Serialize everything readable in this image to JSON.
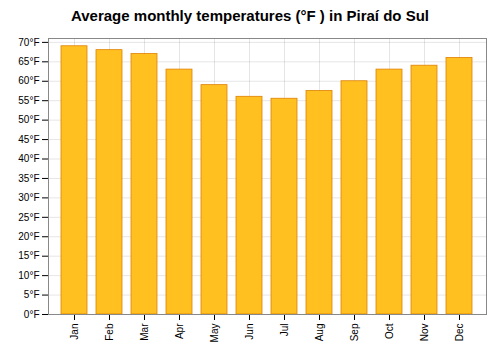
{
  "chart_data": {
    "type": "bar",
    "title": "Average monthly temperatures (°F ) in Piraí do Sul",
    "categories": [
      "Jan",
      "Feb",
      "Mar",
      "Apr",
      "May",
      "Jun",
      "Jul",
      "Aug",
      "Sep",
      "Oct",
      "Nov",
      "Dec"
    ],
    "values": [
      69,
      68,
      67,
      63,
      59,
      56,
      55.5,
      57.5,
      60,
      63,
      64,
      66
    ],
    "color": "#FFC020",
    "ylim": [
      0,
      71
    ],
    "yticks": [
      {
        "value": 0,
        "label": "0°F"
      },
      {
        "value": 5,
        "label": "5°F"
      },
      {
        "value": 10,
        "label": "10°F"
      },
      {
        "value": 15,
        "label": "15°F"
      },
      {
        "value": 20,
        "label": "20°F"
      },
      {
        "value": 25,
        "label": "25°F"
      },
      {
        "value": 30,
        "label": "30°F"
      },
      {
        "value": 35,
        "label": "35°F"
      },
      {
        "value": 40,
        "label": "40°F"
      },
      {
        "value": 45,
        "label": "45°F"
      },
      {
        "value": 50,
        "label": "50°F"
      },
      {
        "value": 55,
        "label": "55°F"
      },
      {
        "value": 60,
        "label": "60°F"
      },
      {
        "value": 65,
        "label": "65°F"
      },
      {
        "value": 70,
        "label": "70°F"
      }
    ],
    "grid": true
  }
}
